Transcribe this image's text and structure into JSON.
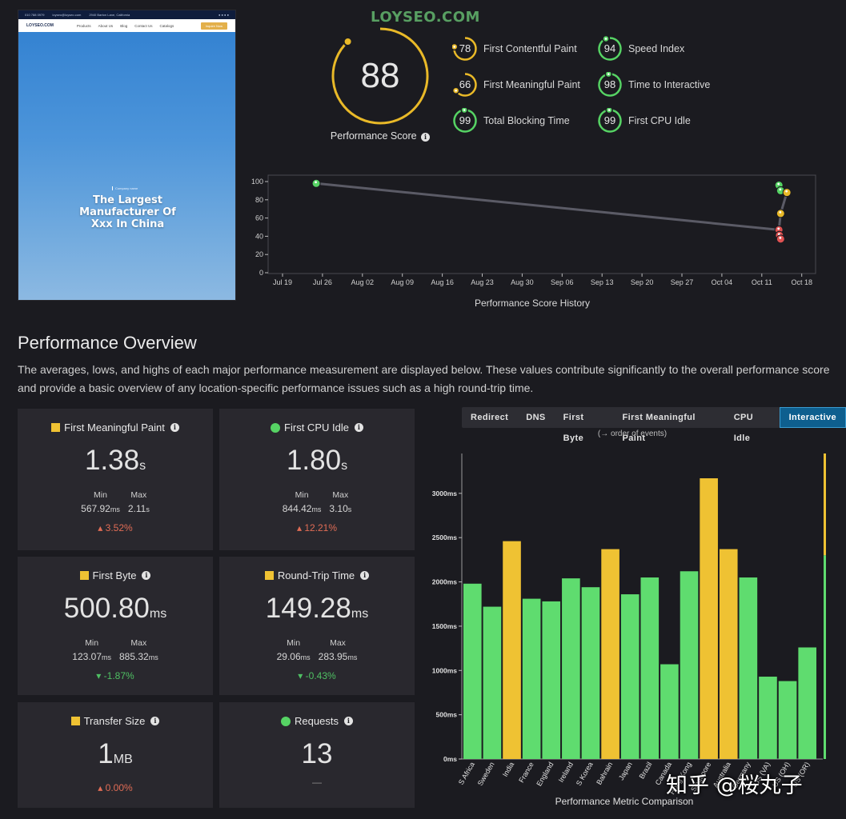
{
  "preview": {
    "topbar": [
      "010 788 0979",
      "loyseo@loyseo.com",
      "2940 Barton Lane, California"
    ],
    "logo": "LOYSEO.COM",
    "nav": [
      "Products",
      "About Us",
      "Blog",
      "Contact Us",
      "Catalogs"
    ],
    "cta": "Inquire Now",
    "tagline": "Company name",
    "hero": [
      "The Largest",
      "Manufacturer Of",
      "Xxx In China"
    ]
  },
  "watermark": "LOYSEO.COM",
  "score": {
    "value": "88",
    "fraction": 0.88,
    "label": "Performance Score"
  },
  "metrics": [
    {
      "name": "First Contentful Paint",
      "value": "78",
      "fraction": 0.78,
      "color": "#e9b928"
    },
    {
      "name": "First Meaningful Paint",
      "value": "66",
      "fraction": 0.66,
      "color": "#e9b928"
    },
    {
      "name": "Total Blocking Time",
      "value": "99",
      "fraction": 0.99,
      "color": "#56d364"
    },
    {
      "name": "Speed Index",
      "value": "94",
      "fraction": 0.94,
      "color": "#56d364"
    },
    {
      "name": "Time to Interactive",
      "value": "98",
      "fraction": 0.98,
      "color": "#56d364"
    },
    {
      "name": "First CPU Idle",
      "value": "99",
      "fraction": 0.99,
      "color": "#56d364"
    }
  ],
  "history": {
    "title": "Performance Score History",
    "y_ticks": [
      "0",
      "20",
      "40",
      "60",
      "80",
      "100"
    ],
    "x_ticks": [
      "Jul 19",
      "Jul 26",
      "Aug 02",
      "Aug 09",
      "Aug 16",
      "Aug 23",
      "Aug 30",
      "Sep 06",
      "Sep 13",
      "Sep 20",
      "Sep 27",
      "Oct 04",
      "Oct 11",
      "Oct 18"
    ],
    "points": [
      {
        "day": 5.9,
        "score": 98,
        "color": "#56d364"
      },
      {
        "day": 87.0,
        "score": 96,
        "color": "#56d364"
      },
      {
        "day": 87.3,
        "score": 90,
        "color": "#56d364"
      },
      {
        "day": 88.4,
        "score": 88,
        "color": "#e9b928"
      },
      {
        "day": 87.3,
        "score": 65,
        "color": "#e9b928"
      },
      {
        "day": 87.0,
        "score": 47,
        "color": "#e05252"
      },
      {
        "day": 87.1,
        "score": 41,
        "color": "#e05252"
      },
      {
        "day": 87.3,
        "score": 37,
        "color": "#e05252"
      }
    ]
  },
  "overview": {
    "title": "Performance Overview",
    "desc": "The averages, lows, and highs of each major performance measurement are displayed below. These values contribute significantly to the overall performance score and provide a basic overview of any location-specific performance issues such as a high round-trip time."
  },
  "cards": {
    "labels": {
      "min": "Min",
      "max": "Max"
    },
    "fmp": {
      "title": "First Meaningful Paint",
      "value": "1.38",
      "unit": "s",
      "min": "567.92",
      "min_unit": "ms",
      "max": "2.11",
      "max_unit": "s",
      "change": "3.52%"
    },
    "fci": {
      "title": "First CPU Idle",
      "value": "1.80",
      "unit": "s",
      "min": "844.42",
      "min_unit": "ms",
      "max": "3.10",
      "max_unit": "s",
      "change": "12.21%"
    },
    "ttfb": {
      "title": "First Byte",
      "value": "500.80",
      "unit": "ms",
      "min": "123.07",
      "min_unit": "ms",
      "max": "885.32",
      "max_unit": "ms",
      "change": "-1.87%"
    },
    "rtt": {
      "title": "Round-Trip Time",
      "value": "149.28",
      "unit": "ms",
      "min": "29.06",
      "min_unit": "ms",
      "max": "283.95",
      "max_unit": "ms",
      "change": "-0.43%"
    },
    "size": {
      "title": "Transfer Size",
      "value": "1",
      "unit": "MB",
      "change": "0.00%"
    },
    "req": {
      "title": "Requests",
      "value": "13",
      "change": "—"
    }
  },
  "tabs": [
    "Redirect",
    "DNS",
    "First Byte",
    "First Meaningful Paint",
    "CPU Idle",
    "Interactive"
  ],
  "order_note": "(→ order of events)",
  "chart_data": {
    "type": "bar",
    "title": "Performance Metric Comparison",
    "ylabel": "ms",
    "ylim": [
      0,
      3450
    ],
    "y_ticks": [
      "0ms",
      "500ms",
      "1000ms",
      "1500ms",
      "2000ms",
      "2500ms",
      "3000ms"
    ],
    "categories": [
      "S Africa",
      "Sweden",
      "India",
      "France",
      "England",
      "Ireland",
      "S Korea",
      "Bahrain",
      "Japan",
      "Brazil",
      "Canada",
      "Hong Kong",
      "Singapore",
      "Australia",
      "Germany",
      "US (VA)",
      "US (OH)",
      "US (OR)"
    ],
    "values": [
      1980,
      1720,
      2460,
      1810,
      1780,
      2040,
      1940,
      2370,
      1860,
      2050,
      1070,
      2120,
      3170,
      2370,
      2050,
      930,
      880,
      1260
    ],
    "colors": [
      "#5fdc6f",
      "#5fdc6f",
      "#efc233",
      "#5fdc6f",
      "#5fdc6f",
      "#5fdc6f",
      "#5fdc6f",
      "#efc233",
      "#5fdc6f",
      "#5fdc6f",
      "#5fdc6f",
      "#5fdc6f",
      "#efc233",
      "#efc233",
      "#5fdc6f",
      "#5fdc6f",
      "#5fdc6f",
      "#5fdc6f"
    ],
    "side_indicator": {
      "green": 2300,
      "yellow": 3450
    }
  },
  "zhihu": "知乎 @桜丸子"
}
